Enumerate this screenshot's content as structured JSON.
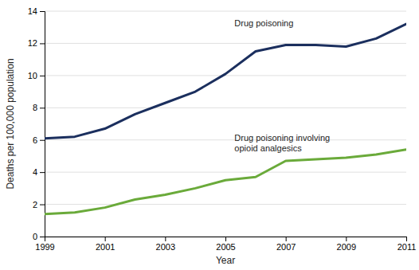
{
  "chart_data": {
    "type": "line",
    "x": [
      1999,
      2000,
      2001,
      2002,
      2003,
      2004,
      2005,
      2006,
      2007,
      2008,
      2009,
      2010,
      2011
    ],
    "series": [
      {
        "color": "#1b2f5e",
        "values": [
          6.1,
          6.2,
          6.7,
          7.6,
          8.3,
          9.0,
          10.1,
          11.5,
          11.9,
          11.9,
          11.8,
          12.3,
          13.2
        ]
      },
      {
        "color": "#6aaa3a",
        "values": [
          1.4,
          1.5,
          1.8,
          2.3,
          2.6,
          3.0,
          3.5,
          3.7,
          4.7,
          4.8,
          4.9,
          5.1,
          5.4
        ]
      }
    ],
    "annotations": [
      {
        "text": "Drug poisoning",
        "x": 2005.3,
        "y": 12.9
      },
      {
        "text": "Drug poisoning involving\nopioid analgesics",
        "x": 2005.3,
        "y": 6.5
      }
    ],
    "x_label": "Year",
    "y_label": "Deaths per 100,000 population",
    "xlim": [
      1999,
      2011
    ],
    "ylim": [
      0,
      14
    ],
    "xticks": [
      1999,
      2001,
      2003,
      2005,
      2007,
      2009,
      2011
    ],
    "yticks": [
      0,
      2,
      4,
      6,
      8,
      10,
      12,
      14
    ],
    "grid": true
  }
}
